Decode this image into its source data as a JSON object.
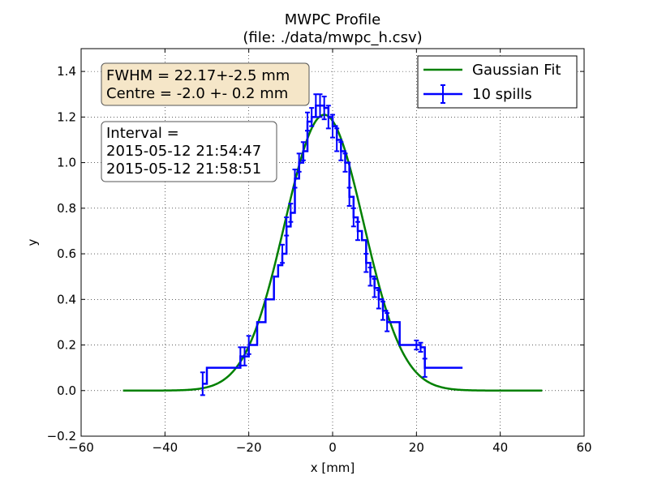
{
  "chart_data": {
    "type": "line",
    "title": "MWPC Profile",
    "subtitle": "(file: ./data/mwpc_h.csv)",
    "xlabel": "x [mm]",
    "ylabel": "y",
    "xlim": [
      -60,
      60
    ],
    "ylim": [
      -0.2,
      1.5
    ],
    "x_ticks": [
      -60,
      -40,
      -20,
      0,
      20,
      40,
      60
    ],
    "x_tick_labels": [
      "−60",
      "−40",
      "−20",
      "0",
      "20",
      "40",
      "60"
    ],
    "y_ticks": [
      -0.2,
      0.0,
      0.2,
      0.4,
      0.6,
      0.8,
      1.0,
      1.2,
      1.4
    ],
    "y_tick_labels": [
      "−0.2",
      "0.0",
      "0.2",
      "0.4",
      "0.6",
      "0.8",
      "1.0",
      "1.2",
      "1.4"
    ],
    "grid": true,
    "legend_position": "top-right",
    "series": [
      {
        "name": "Gaussian Fit",
        "kind": "line",
        "color": "#008000",
        "function": "gaussian",
        "amplitude": 1.21,
        "mean": -2.0,
        "fwhm": 22.17,
        "x_range": [
          -50,
          50
        ]
      },
      {
        "name": "10 spills",
        "kind": "step-errorbar",
        "color": "#0000ff",
        "x": [
          -31,
          -30,
          -22,
          -21,
          -20,
          -18,
          -16,
          -14,
          -13,
          -12,
          -11,
          -10,
          -9,
          -8,
          -7,
          -6,
          -5,
          -4,
          -3,
          -2,
          -1,
          0,
          1,
          2,
          3,
          4,
          5,
          6,
          7,
          8,
          9,
          10,
          11,
          12,
          13,
          14,
          16,
          20,
          21,
          22,
          31
        ],
        "y": [
          0.03,
          0.1,
          0.15,
          0.15,
          0.2,
          0.3,
          0.4,
          0.5,
          0.55,
          0.6,
          0.72,
          0.78,
          0.93,
          1.0,
          1.05,
          1.18,
          1.2,
          1.25,
          1.25,
          1.24,
          1.2,
          1.16,
          1.1,
          1.05,
          1.0,
          0.85,
          0.76,
          0.7,
          0.66,
          0.56,
          0.5,
          0.45,
          0.4,
          0.35,
          0.3,
          0.3,
          0.2,
          0.2,
          0.19,
          0.1,
          0.1
        ],
        "yerr": [
          0.05,
          0,
          0.04,
          0.04,
          0.04,
          0,
          0,
          0,
          0,
          0.04,
          0.04,
          0.04,
          0.04,
          0.04,
          0.04,
          0.04,
          0.04,
          0.05,
          0.05,
          0.05,
          0.05,
          0.05,
          0.05,
          0.04,
          0.04,
          0.04,
          0.04,
          0.04,
          0,
          0.04,
          0.04,
          0.04,
          0.04,
          0.04,
          0.04,
          0,
          0,
          0.02,
          0.02,
          0.04,
          0
        ]
      }
    ],
    "annotations": {
      "fit_box": {
        "lines": [
          "FWHM = 22.17+-2.5 mm",
          "Centre = -2.0 +- 0.2 mm"
        ],
        "facecolor": "#f5e6c8"
      },
      "interval_box": {
        "lines": [
          "Interval =",
          "2015-05-12 21:54:47",
          "2015-05-12 21:58:51"
        ],
        "facecolor": "#ffffff"
      }
    }
  }
}
